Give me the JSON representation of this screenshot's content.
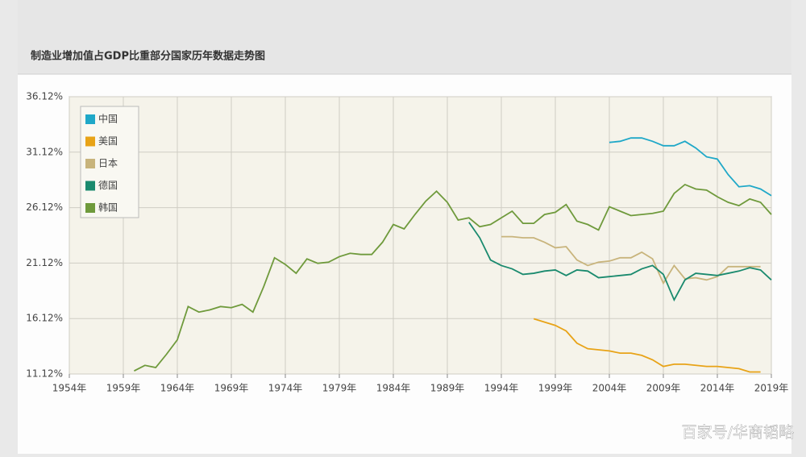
{
  "chart_data": {
    "type": "line",
    "title": "制造业增加值占GDP比重部分国家历年数据走势图",
    "x": [
      1960,
      1961,
      1962,
      1963,
      1964,
      1965,
      1966,
      1967,
      1968,
      1969,
      1970,
      1971,
      1972,
      1973,
      1974,
      1975,
      1976,
      1977,
      1978,
      1979,
      1980,
      1981,
      1982,
      1983,
      1984,
      1985,
      1986,
      1987,
      1988,
      1989,
      1990,
      1991,
      1992,
      1993,
      1994,
      1995,
      1996,
      1997,
      1998,
      1999,
      2000,
      2001,
      2002,
      2003,
      2004,
      2005,
      2006,
      2007,
      2008,
      2009,
      2010,
      2011,
      2012,
      2013,
      2014,
      2015,
      2016,
      2017,
      2018,
      2019
    ],
    "series": [
      {
        "name": "中国",
        "color": "#1fa8c8",
        "values": [
          null,
          null,
          null,
          null,
          null,
          null,
          null,
          null,
          null,
          null,
          null,
          null,
          null,
          null,
          null,
          null,
          null,
          null,
          null,
          null,
          null,
          null,
          null,
          null,
          null,
          null,
          null,
          null,
          null,
          null,
          null,
          null,
          null,
          null,
          null,
          null,
          null,
          null,
          null,
          null,
          null,
          null,
          null,
          null,
          32.0,
          32.1,
          32.4,
          32.4,
          32.1,
          31.7,
          31.7,
          32.1,
          31.5,
          30.7,
          30.5,
          29.1,
          28.0,
          28.1,
          27.8,
          27.2
        ]
      },
      {
        "name": "美国",
        "color": "#e8a317",
        "values": [
          null,
          null,
          null,
          null,
          null,
          null,
          null,
          null,
          null,
          null,
          null,
          null,
          null,
          null,
          null,
          null,
          null,
          null,
          null,
          null,
          null,
          null,
          null,
          null,
          null,
          null,
          null,
          null,
          null,
          null,
          null,
          null,
          null,
          null,
          null,
          null,
          null,
          16.1,
          15.8,
          15.5,
          15.0,
          13.9,
          13.4,
          13.3,
          13.2,
          13.0,
          13.0,
          12.8,
          12.4,
          11.8,
          12.0,
          12.0,
          11.9,
          11.8,
          11.8,
          11.7,
          11.6,
          11.3,
          11.3,
          null
        ]
      },
      {
        "name": "日本",
        "color": "#c8b47c",
        "values": [
          null,
          null,
          null,
          null,
          null,
          null,
          null,
          null,
          null,
          null,
          null,
          null,
          null,
          null,
          null,
          null,
          null,
          null,
          null,
          null,
          null,
          null,
          null,
          null,
          null,
          null,
          null,
          null,
          null,
          null,
          null,
          null,
          null,
          null,
          23.5,
          23.5,
          23.4,
          23.4,
          23.0,
          22.5,
          22.6,
          21.4,
          20.9,
          21.2,
          21.3,
          21.6,
          21.6,
          22.1,
          21.5,
          19.3,
          20.9,
          19.7,
          19.8,
          19.6,
          19.9,
          20.8,
          20.8,
          20.8,
          20.8,
          null
        ]
      },
      {
        "name": "德国",
        "color": "#1a8a6e",
        "values": [
          null,
          null,
          null,
          null,
          null,
          null,
          null,
          null,
          null,
          null,
          null,
          null,
          null,
          null,
          null,
          null,
          null,
          null,
          null,
          null,
          null,
          null,
          null,
          null,
          null,
          null,
          null,
          null,
          null,
          null,
          null,
          24.8,
          23.4,
          21.4,
          20.9,
          20.6,
          20.1,
          20.2,
          20.4,
          20.5,
          20.0,
          20.5,
          20.4,
          19.8,
          19.9,
          20.0,
          20.1,
          20.6,
          20.9,
          20.1,
          17.8,
          19.6,
          20.2,
          20.1,
          20.0,
          20.2,
          20.4,
          20.7,
          20.5,
          19.6
        ]
      },
      {
        "name": "韩国",
        "color": "#6f9a3c",
        "values": [
          11.4,
          11.9,
          11.7,
          12.9,
          14.2,
          17.2,
          16.7,
          16.9,
          17.2,
          17.1,
          17.4,
          16.7,
          19.0,
          21.6,
          21.0,
          20.2,
          21.5,
          21.1,
          21.2,
          21.7,
          22.0,
          21.9,
          21.9,
          23.0,
          24.6,
          24.2,
          25.5,
          26.7,
          27.6,
          26.6,
          25.0,
          25.2,
          24.4,
          24.6,
          25.2,
          25.8,
          24.7,
          24.7,
          25.5,
          25.7,
          26.4,
          24.9,
          24.6,
          24.1,
          26.2,
          25.8,
          25.4,
          25.5,
          25.6,
          25.8,
          27.4,
          28.2,
          27.8,
          27.7,
          27.1,
          26.6,
          26.3,
          26.9,
          26.6,
          25.5
        ]
      }
    ],
    "xlim": [
      1954,
      2019
    ],
    "xticks": [
      {
        "value": 1954,
        "label": "1954年"
      },
      {
        "value": 1959,
        "label": "1959年"
      },
      {
        "value": 1964,
        "label": "1964年"
      },
      {
        "value": 1969,
        "label": "1969年"
      },
      {
        "value": 1974,
        "label": "1974年"
      },
      {
        "value": 1979,
        "label": "1979年"
      },
      {
        "value": 1984,
        "label": "1984年"
      },
      {
        "value": 1989,
        "label": "1989年"
      },
      {
        "value": 1994,
        "label": "1994年"
      },
      {
        "value": 1999,
        "label": "1999年"
      },
      {
        "value": 2004,
        "label": "2004年"
      },
      {
        "value": 2009,
        "label": "2009年"
      },
      {
        "value": 2014,
        "label": "2014年"
      },
      {
        "value": 2019,
        "label": "2019年"
      }
    ],
    "ylim": [
      11.12,
      36.12
    ],
    "yticks": [
      {
        "value": 11.12,
        "label": "11.12%"
      },
      {
        "value": 16.12,
        "label": "16.12%"
      },
      {
        "value": 21.12,
        "label": "21.12%"
      },
      {
        "value": 26.12,
        "label": "26.12%"
      },
      {
        "value": 31.12,
        "label": "31.12%"
      },
      {
        "value": 36.12,
        "label": "36.12%"
      }
    ],
    "grid": true,
    "legend": "upper left"
  },
  "watermark": "百家号/华商韬略"
}
